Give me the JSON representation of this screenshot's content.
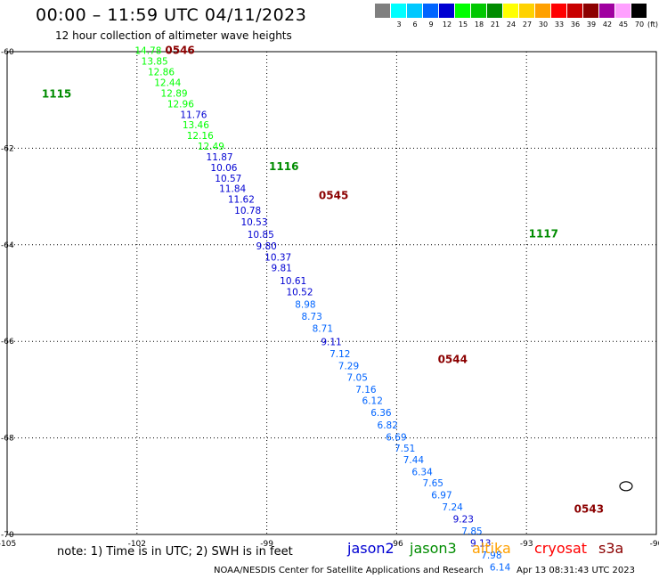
{
  "header": {
    "title": "00:00 – 11:59 UTC 04/11/2023",
    "subtitle": "12 hour collection of altimeter wave heights"
  },
  "legend": {
    "unit": "(ft)",
    "stops": [
      {
        "label": "",
        "color": "#7f7f7f"
      },
      {
        "label": "3",
        "color": "#00ffff"
      },
      {
        "label": "6",
        "color": "#00c8ff"
      },
      {
        "label": "9",
        "color": "#0064ff"
      },
      {
        "label": "12",
        "color": "#0000d2"
      },
      {
        "label": "15",
        "color": "#00ff00"
      },
      {
        "label": "18",
        "color": "#00c800"
      },
      {
        "label": "21",
        "color": "#008c00"
      },
      {
        "label": "24",
        "color": "#ffff00"
      },
      {
        "label": "27",
        "color": "#ffd200"
      },
      {
        "label": "30",
        "color": "#ffa000"
      },
      {
        "label": "33",
        "color": "#ff0000"
      },
      {
        "label": "36",
        "color": "#c80000"
      },
      {
        "label": "39",
        "color": "#8c0000"
      },
      {
        "label": "42",
        "color": "#a000a0"
      },
      {
        "label": "45",
        "color": "#ffa0ff"
      },
      {
        "label": "70",
        "color": "#000000"
      }
    ]
  },
  "map": {
    "lon_range": [
      -105,
      -90
    ],
    "lat_range": [
      -60,
      -70
    ],
    "lon_ticks": [
      -105,
      -102,
      -99,
      -96,
      -93,
      -90
    ],
    "lat_ticks": [
      -60,
      -62,
      -64,
      -66,
      -68,
      -70
    ],
    "lon_tick_labels": [
      "-105",
      "-102",
      "-99",
      "-96",
      "-93",
      "-90"
    ],
    "lat_tick_labels": [
      "-60",
      "-62",
      "-64",
      "-66",
      "-68",
      "-70"
    ],
    "time_labels": [
      {
        "text": "0546",
        "lon": -101.35,
        "lat": -60.05,
        "color": "#8b0000"
      },
      {
        "text": "1115",
        "lon": -104.2,
        "lat": -60.95,
        "color": "#008c00"
      },
      {
        "text": "1116",
        "lon": -98.95,
        "lat": -62.45,
        "color": "#008c00"
      },
      {
        "text": "0545",
        "lon": -97.8,
        "lat": -63.05,
        "color": "#8b0000"
      },
      {
        "text": "1117",
        "lon": -92.95,
        "lat": -63.85,
        "color": "#008c00"
      },
      {
        "text": "0544",
        "lon": -95.05,
        "lat": -66.45,
        "color": "#8b0000"
      },
      {
        "text": "0543",
        "lon": -91.9,
        "lat": -69.55,
        "color": "#8b0000"
      }
    ],
    "island": {
      "lon": -90.7,
      "lat": -69.0
    },
    "points": [
      {
        "v": "14.78",
        "lon": -102.05,
        "lat": -60.05
      },
      {
        "v": "13.85",
        "lon": -101.9,
        "lat": -60.27
      },
      {
        "v": "12.86",
        "lon": -101.75,
        "lat": -60.49
      },
      {
        "v": "12.44",
        "lon": -101.6,
        "lat": -60.71
      },
      {
        "v": "12.89",
        "lon": -101.45,
        "lat": -60.93
      },
      {
        "v": "12.96",
        "lon": -101.3,
        "lat": -61.15
      },
      {
        "v": "11.76",
        "lon": -101.0,
        "lat": -61.37
      },
      {
        "v": "13.46",
        "lon": -100.95,
        "lat": -61.59
      },
      {
        "v": "12.16",
        "lon": -100.85,
        "lat": -61.81
      },
      {
        "v": "12.49",
        "lon": -100.6,
        "lat": -62.03
      },
      {
        "v": "11.87",
        "lon": -100.4,
        "lat": -62.25
      },
      {
        "v": "10.06",
        "lon": -100.3,
        "lat": -62.47
      },
      {
        "v": "10.57",
        "lon": -100.2,
        "lat": -62.69
      },
      {
        "v": "11.84",
        "lon": -100.1,
        "lat": -62.91
      },
      {
        "v": "11.62",
        "lon": -99.9,
        "lat": -63.13
      },
      {
        "v": "10.78",
        "lon": -99.75,
        "lat": -63.36
      },
      {
        "v": "10.53",
        "lon": -99.6,
        "lat": -63.6
      },
      {
        "v": "10.85",
        "lon": -99.45,
        "lat": -63.86
      },
      {
        "v": "9.80",
        "lon": -99.25,
        "lat": -64.1
      },
      {
        "v": "10.37",
        "lon": -99.05,
        "lat": -64.33
      },
      {
        "v": "9.81",
        "lon": -98.9,
        "lat": -64.55
      },
      {
        "v": "10.61",
        "lon": -98.7,
        "lat": -64.82
      },
      {
        "v": "10.52",
        "lon": -98.55,
        "lat": -65.05
      },
      {
        "v": "8.98",
        "lon": -98.35,
        "lat": -65.3
      },
      {
        "v": "8.73",
        "lon": -98.2,
        "lat": -65.55
      },
      {
        "v": "8.71",
        "lon": -97.95,
        "lat": -65.8
      },
      {
        "v": "9.11",
        "lon": -97.75,
        "lat": -66.08
      },
      {
        "v": "7.12",
        "lon": -97.55,
        "lat": -66.33
      },
      {
        "v": "7.29",
        "lon": -97.35,
        "lat": -66.58
      },
      {
        "v": "7.05",
        "lon": -97.15,
        "lat": -66.82
      },
      {
        "v": "7.16",
        "lon": -96.95,
        "lat": -67.07
      },
      {
        "v": "6.12",
        "lon": -96.8,
        "lat": -67.3
      },
      {
        "v": "6.36",
        "lon": -96.6,
        "lat": -67.55
      },
      {
        "v": "6.82",
        "lon": -96.45,
        "lat": -67.8
      },
      {
        "v": "6.69",
        "lon": -96.25,
        "lat": -68.05
      },
      {
        "v": "7.51",
        "lon": -96.05,
        "lat": -68.28
      },
      {
        "v": "7.44",
        "lon": -95.85,
        "lat": -68.52
      },
      {
        "v": "6.34",
        "lon": -95.65,
        "lat": -68.77
      },
      {
        "v": "7.65",
        "lon": -95.4,
        "lat": -69.0
      },
      {
        "v": "6.97",
        "lon": -95.2,
        "lat": -69.25
      },
      {
        "v": "7.24",
        "lon": -94.95,
        "lat": -69.5
      },
      {
        "v": "9.23",
        "lon": -94.7,
        "lat": -69.75
      },
      {
        "v": "7.85",
        "lon": -94.5,
        "lat": -70.0
      },
      {
        "v": "9.13",
        "lon": -94.3,
        "lat": -70.25
      },
      {
        "v": "7.98",
        "lon": -94.05,
        "lat": -70.5
      },
      {
        "v": "6.14",
        "lon": -93.85,
        "lat": -70.75
      }
    ]
  },
  "footer": {
    "note": "note:  1) Time is in UTC;  2) SWH is in feet",
    "satellites": [
      {
        "name": "jason2",
        "color": "#0000d2"
      },
      {
        "name": "jason3",
        "color": "#008c00"
      },
      {
        "name": "altika",
        "color": "#ffa000"
      },
      {
        "name": "cryosat",
        "color": "#ff0000"
      },
      {
        "name": "s3a",
        "color": "#8b0000"
      }
    ],
    "credit": "NOAA/NESDIS Center for Satellite Applications and Research",
    "timestamp": "Apr 13 08:31:43 UTC 2023"
  }
}
